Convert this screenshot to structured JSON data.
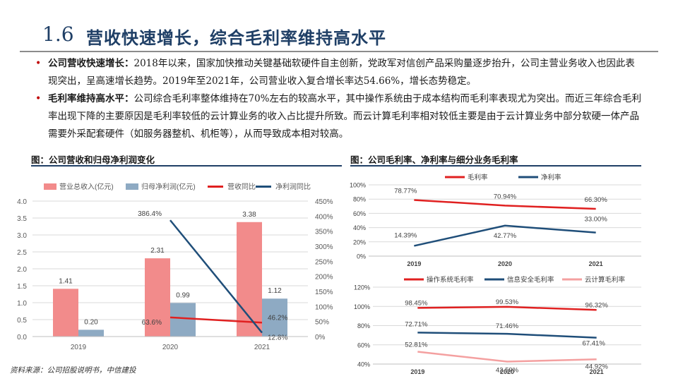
{
  "slide": {
    "number": "1.6",
    "title": "营收快速增长，综合毛利率维持高水平",
    "bullets": [
      {
        "lead": "公司营收快速增长：",
        "text": "2018年以来，国家加快推动关键基础软硬件自主创新，党政军对信创产品采购量逐步抬升，公司主营业务收入也因此表现突出，呈高速增长趋势。2019年至2021年，公司营业收入复合增长率达54.66%，增长态势稳定。"
      },
      {
        "lead": "毛利率维持高水平：",
        "text": "公司综合毛利率整体维持在70%左右的较高水平，其中操作系统由于成本结构而毛利率表现尤为突出。而近三年综合毛利率出现下降的主要原因是毛利率较低的云计算业务的收入占比提升所致。而云计算毛利率相对较低主要是由于云计算业务中部分软硬一体产品需要外采配套硬件（如服务器整机、机柜等），从而导致成本相对较高。"
      }
    ],
    "left_chart_title": "图：公司营收和归母净利润变化",
    "right_chart_title": "图：公司毛利率、净利率与细分业务毛利率",
    "source": "资料来源：公司招股说明书，中信建投",
    "colors": {
      "title": "#1f3f66",
      "bullet": "#c00000",
      "revenue_bar": "#f28b8b",
      "profit_bar": "#8eaac3",
      "red_line": "#e02020",
      "blue_line": "#1f4e79",
      "pink_line": "#f4a0a0"
    }
  },
  "chart_data": [
    {
      "type": "bar",
      "categories": [
        "2019",
        "2020",
        "2021"
      ],
      "series": [
        {
          "name": "营业总收入(亿元)",
          "values": [
            1.41,
            2.31,
            3.38
          ],
          "labels": [
            "1.41",
            "2.31",
            "3.38"
          ],
          "axis": "left"
        },
        {
          "name": "归母净利润(亿元)",
          "values": [
            0.2,
            0.99,
            1.12
          ],
          "labels": [
            "0.20",
            "0.99",
            "1.12"
          ],
          "axis": "left"
        },
        {
          "name": "营收同比",
          "type": "line",
          "x": [
            "2020",
            "2021"
          ],
          "values": [
            63.6,
            46.2
          ],
          "labels": [
            "63.6%",
            "46.2%"
          ],
          "axis": "right"
        },
        {
          "name": "净利润同比",
          "type": "line",
          "x": [
            "2020",
            "2021"
          ],
          "values": [
            386.4,
            12.8
          ],
          "labels": [
            "386.4%",
            "12.8%"
          ],
          "axis": "right"
        }
      ],
      "ylim": [
        0,
        4.0
      ],
      "yticks": [
        "0.0",
        "0.5",
        "1.0",
        "1.5",
        "2.0",
        "2.5",
        "3.0",
        "3.5",
        "4.0"
      ],
      "y2lim": [
        0,
        450
      ],
      "y2ticks": [
        "0%",
        "50%",
        "100%",
        "150%",
        "200%",
        "250%",
        "300%",
        "350%",
        "400%",
        "450%"
      ],
      "grid": true,
      "legend": "top"
    },
    {
      "type": "line",
      "x": [
        "2019",
        "2020",
        "2021"
      ],
      "series": [
        {
          "name": "毛利率",
          "values": [
            78.77,
            70.94,
            66.3
          ],
          "labels": [
            "78.77%",
            "70.94%",
            "66.30%"
          ]
        },
        {
          "name": "净利率",
          "values": [
            14.39,
            42.77,
            33.0
          ],
          "labels": [
            "14.39%",
            "42.77%",
            "33.00%"
          ]
        }
      ],
      "ylim": [
        0,
        100
      ],
      "yticks": [
        "0%",
        "20%",
        "40%",
        "60%",
        "80%",
        "100%"
      ],
      "grid": true,
      "legend": "top"
    },
    {
      "type": "line",
      "x": [
        "2019",
        "2020",
        "2021"
      ],
      "series": [
        {
          "name": "操作系统毛利率",
          "values": [
            98.45,
            99.53,
            96.32
          ],
          "labels": [
            "98.45%",
            "99.53%",
            "96.32%"
          ]
        },
        {
          "name": "信息安全毛利率",
          "values": [
            72.71,
            71.46,
            67.41
          ],
          "labels": [
            "72.71%",
            "71.46%",
            "67.41%"
          ]
        },
        {
          "name": "云计算毛利率",
          "values": [
            52.81,
            42.59,
            44.92
          ],
          "labels": [
            "52.81%",
            "42.59%",
            "44.92%"
          ]
        }
      ],
      "ylim": [
        40,
        120
      ],
      "yticks": [
        "40%",
        "60%",
        "80%",
        "100%",
        "120%"
      ],
      "grid": true,
      "legend": "top"
    }
  ]
}
